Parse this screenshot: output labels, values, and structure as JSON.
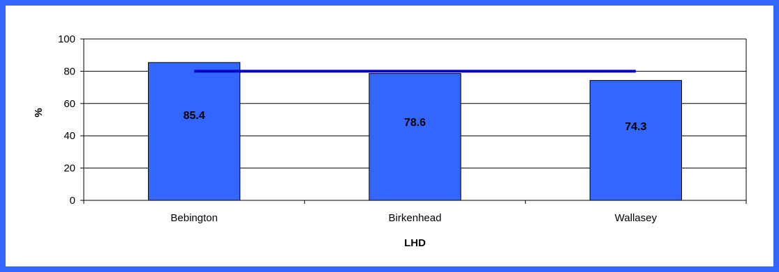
{
  "chart_data": {
    "type": "bar",
    "categories": [
      "Bebington",
      "Birkenhead",
      "Wallasey"
    ],
    "values": [
      85.4,
      78.6,
      74.3
    ],
    "data_labels": [
      "85.4",
      "78.6",
      "74.3"
    ],
    "reference_line": {
      "value": 80
    },
    "title": "",
    "xlabel": "LHD",
    "ylabel": "%",
    "ylim": [
      0,
      100
    ],
    "yticks": [
      "0",
      "20",
      "40",
      "60",
      "80",
      "100"
    ],
    "grid": true,
    "legend": "none",
    "colors": {
      "bar": "#3366ff",
      "bar_stroke": "#000000",
      "line": "#0000cc",
      "frame": "#3366ff"
    }
  }
}
